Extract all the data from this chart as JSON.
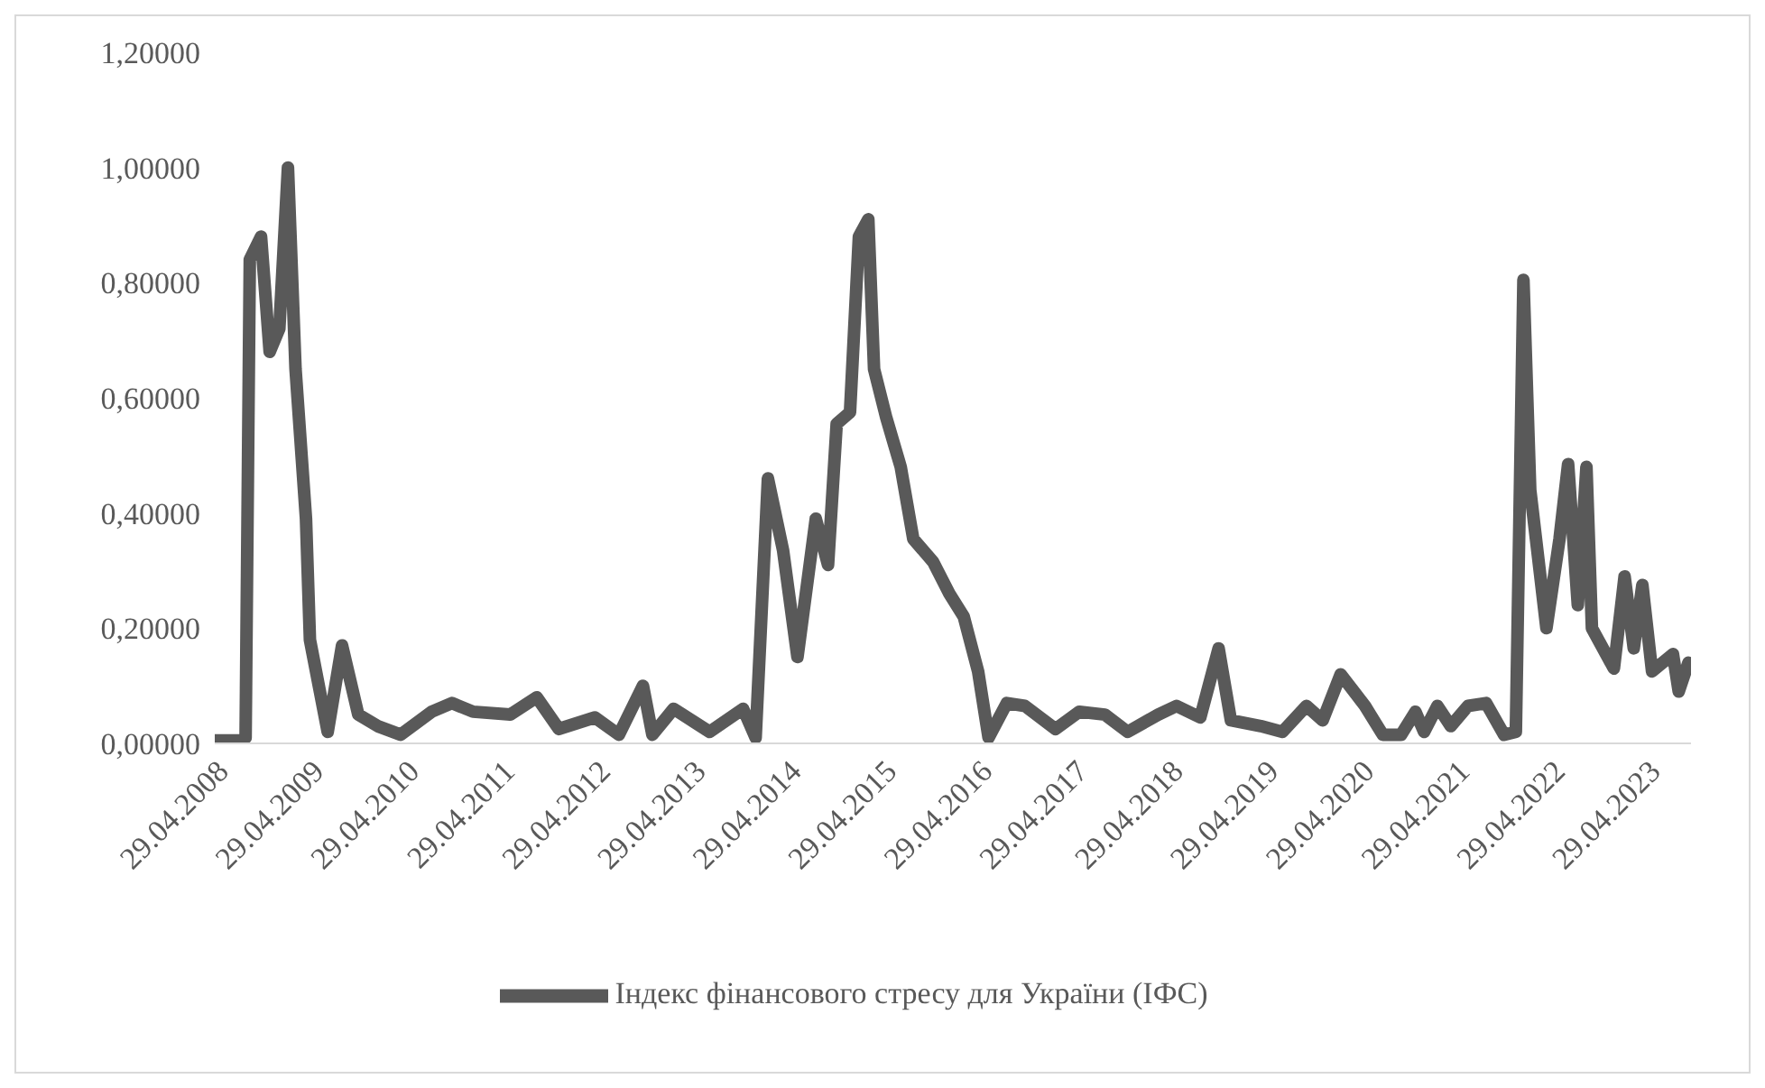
{
  "chart_data": {
    "type": "line",
    "legend": "bottom",
    "grid": false,
    "marker": "none",
    "line_style": "solid",
    "xlim": [
      "2008-04-29",
      "2023-10-15"
    ],
    "xticks": [
      {
        "value": "2008-04-29",
        "label": "29.04.2008"
      },
      {
        "value": "2009-04-29",
        "label": "29.04.2009"
      },
      {
        "value": "2010-04-29",
        "label": "29.04.2010"
      },
      {
        "value": "2011-04-29",
        "label": "29.04.2011"
      },
      {
        "value": "2012-04-29",
        "label": "29.04.2012"
      },
      {
        "value": "2013-04-29",
        "label": "29.04.2013"
      },
      {
        "value": "2014-04-29",
        "label": "29.04.2014"
      },
      {
        "value": "2015-04-29",
        "label": "29.04.2015"
      },
      {
        "value": "2016-04-29",
        "label": "29.04.2016"
      },
      {
        "value": "2017-04-29",
        "label": "29.04.2017"
      },
      {
        "value": "2018-04-29",
        "label": "29.04.2018"
      },
      {
        "value": "2019-04-29",
        "label": "29.04.2019"
      },
      {
        "value": "2020-04-29",
        "label": "29.04.2020"
      },
      {
        "value": "2021-04-29",
        "label": "29.04.2021"
      },
      {
        "value": "2022-04-29",
        "label": "29.04.2022"
      },
      {
        "value": "2023-04-29",
        "label": "29.04.2023"
      }
    ],
    "ylim": [
      0,
      1.2
    ],
    "yticks": [
      {
        "value": 0,
        "label": "0,00000"
      },
      {
        "value": 0.2,
        "label": "0,20000"
      },
      {
        "value": 0.4,
        "label": "0,40000"
      },
      {
        "value": 0.6,
        "label": "0,60000"
      },
      {
        "value": 0.8,
        "label": "0,80000"
      },
      {
        "value": 1,
        "label": "1,00000"
      },
      {
        "value": 1.2,
        "label": "1,20000"
      }
    ],
    "x": [
      "2008-04-29",
      "2008-08-07",
      "2008-08-25",
      "2008-09-10",
      "2008-10-23",
      "2008-11-25",
      "2009-01-01",
      "2009-02-03",
      "2009-03-04",
      "2009-04-13",
      "2009-04-28",
      "2009-07-05",
      "2009-08-29",
      "2009-10-30",
      "2010-01-12",
      "2010-04-10",
      "2010-08-07",
      "2010-10-23",
      "2011-01-12",
      "2011-06-03",
      "2011-09-13",
      "2011-12-06",
      "2012-04-22",
      "2012-07-23",
      "2012-10-23",
      "2012-11-28",
      "2013-02-17",
      "2013-07-05",
      "2013-11-10",
      "2013-12-28",
      "2014-02-13",
      "2014-04-12",
      "2014-06-06",
      "2014-08-15",
      "2014-10-01",
      "2014-11-03",
      "2014-12-24",
      "2015-01-27",
      "2015-03-04",
      "2015-03-26",
      "2015-05-12",
      "2015-07-06",
      "2015-08-23",
      "2015-11-07",
      "2016-01-08",
      "2016-03-03",
      "2016-04-27",
      "2016-06-06",
      "2016-08-15",
      "2016-10-23",
      "2017-02-17",
      "2017-05-19",
      "2017-08-25",
      "2017-11-20",
      "2018-03-17",
      "2018-05-26",
      "2018-08-25",
      "2018-11-03",
      "2018-12-20",
      "2019-04-13",
      "2019-07-05",
      "2019-10-05",
      "2019-12-06",
      "2020-02-13",
      "2020-05-16",
      "2020-07-23",
      "2020-10-01",
      "2020-11-25",
      "2020-12-28",
      "2021-02-17",
      "2021-04-09",
      "2021-06-14",
      "2021-08-22",
      "2021-10-30",
      "2021-12-14",
      "2022-01-12",
      "2022-02-07",
      "2022-04-10",
      "2022-05-30",
      "2022-07-02",
      "2022-08-08",
      "2022-09-10",
      "2022-10-01",
      "2022-12-24",
      "2023-02-03",
      "2023-03-10",
      "2023-04-12",
      "2023-05-19",
      "2023-08-07",
      "2023-08-29",
      "2023-10-05"
    ],
    "series": [
      {
        "name": "Індекс фінансового стресу для України (ІФС)",
        "color": "#595959",
        "values": [
          0.005,
          0.005,
          0.01,
          0.84,
          0.88,
          0.68,
          0.72,
          1.0,
          0.65,
          0.39,
          0.18,
          0.02,
          0.17,
          0.05,
          0.03,
          0.015,
          0.055,
          0.07,
          0.055,
          0.05,
          0.08,
          0.025,
          0.045,
          0.015,
          0.1,
          0.015,
          0.06,
          0.02,
          0.06,
          0.01,
          0.46,
          0.335,
          0.15,
          0.39,
          0.31,
          0.555,
          0.575,
          0.88,
          0.91,
          0.65,
          0.565,
          0.48,
          0.355,
          0.315,
          0.26,
          0.22,
          0.125,
          0.01,
          0.07,
          0.065,
          0.025,
          0.055,
          0.05,
          0.02,
          0.05,
          0.065,
          0.045,
          0.165,
          0.04,
          0.03,
          0.02,
          0.065,
          0.04,
          0.12,
          0.065,
          0.015,
          0.015,
          0.055,
          0.02,
          0.065,
          0.03,
          0.065,
          0.07,
          0.015,
          0.02,
          0.805,
          0.44,
          0.2,
          0.355,
          0.485,
          0.24,
          0.48,
          0.2,
          0.13,
          0.29,
          0.165,
          0.275,
          0.125,
          0.155,
          0.09,
          0.14
        ]
      }
    ]
  }
}
